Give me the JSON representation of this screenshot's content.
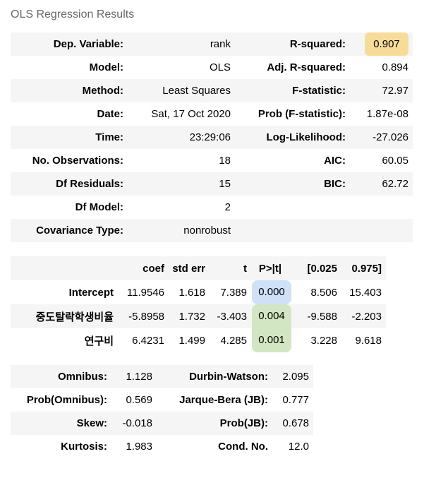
{
  "caption": "OLS Regression Results",
  "summary": [
    {
      "l1": "Dep. Variable:",
      "v1": "rank",
      "l2": "R-squared:",
      "v2": "0.907"
    },
    {
      "l1": "Model:",
      "v1": "OLS",
      "l2": "Adj. R-squared:",
      "v2": "0.894"
    },
    {
      "l1": "Method:",
      "v1": "Least Squares",
      "l2": "F-statistic:",
      "v2": "72.97"
    },
    {
      "l1": "Date:",
      "v1": "Sat, 17 Oct 2020",
      "l2": "Prob (F-statistic):",
      "v2": "1.87e-08"
    },
    {
      "l1": "Time:",
      "v1": "23:29:06",
      "l2": "Log-Likelihood:",
      "v2": "-27.026"
    },
    {
      "l1": "No. Observations:",
      "v1": "18",
      "l2": "AIC:",
      "v2": "60.05"
    },
    {
      "l1": "Df Residuals:",
      "v1": "15",
      "l2": "BIC:",
      "v2": "62.72"
    },
    {
      "l1": "Df Model:",
      "v1": "2",
      "l2": "",
      "v2": ""
    },
    {
      "l1": "Covariance Type:",
      "v1": "nonrobust",
      "l2": "",
      "v2": ""
    }
  ],
  "coef_table": {
    "headers": [
      "coef",
      "std err",
      "t",
      "P>|t|",
      "[0.025",
      "0.975]"
    ],
    "rows": [
      {
        "name": "Intercept",
        "values": [
          "11.9546",
          "1.618",
          "7.389",
          "0.000",
          "8.506",
          "15.403"
        ]
      },
      {
        "name": "중도탈락학생비율",
        "values": [
          "-5.8958",
          "1.732",
          "-3.403",
          "0.004",
          "-9.588",
          "-2.203"
        ]
      },
      {
        "name": "연구비",
        "values": [
          "6.4231",
          "1.499",
          "4.285",
          "0.001",
          "3.228",
          "9.618"
        ]
      }
    ]
  },
  "diagnostics": [
    {
      "l1": "Omnibus:",
      "v1": "1.128",
      "l2": "Durbin-Watson:",
      "v2": "2.095"
    },
    {
      "l1": "Prob(Omnibus):",
      "v1": "0.569",
      "l2": "Jarque-Bera (JB):",
      "v2": "0.777"
    },
    {
      "l1": "Skew:",
      "v1": "-0.018",
      "l2": "Prob(JB):",
      "v2": "0.678"
    },
    {
      "l1": "Kurtosis:",
      "v1": "1.983",
      "l2": "Cond. No.",
      "v2": "12.0"
    }
  ],
  "highlight_colors": {
    "r_squared": "#f7dc98",
    "intercept_p": "#cfe0f7",
    "significant_p": "#d3e6c3"
  }
}
